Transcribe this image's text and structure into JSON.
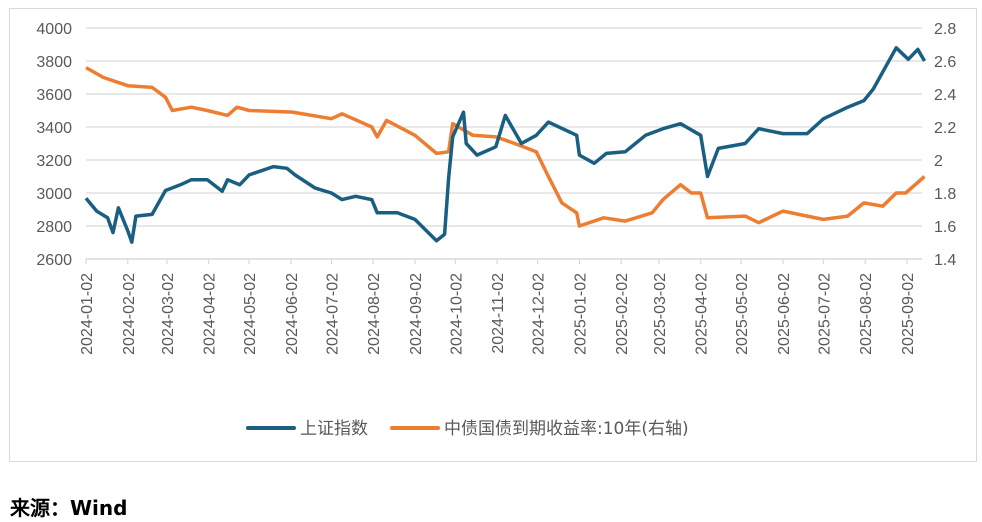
{
  "chart_data": {
    "type": "line",
    "title": "",
    "xlabel": "",
    "ylabel": "",
    "y_left_range": [
      2600,
      4000
    ],
    "y_left_ticks": [
      "2600",
      "2800",
      "3000",
      "3200",
      "3400",
      "3600",
      "3800",
      "4000"
    ],
    "y_right_range": [
      1.4,
      2.8
    ],
    "y_right_ticks": [
      "1.4",
      "1.6",
      "1.8",
      "2",
      "2.2",
      "2.4",
      "2.6",
      "2.8"
    ],
    "x_ticks": [
      "2024-01-02",
      "2024-02-02",
      "2024-03-02",
      "2024-04-02",
      "2024-05-02",
      "2024-06-02",
      "2024-07-02",
      "2024-08-02",
      "2024-09-02",
      "2024-10-02",
      "2024-11-02",
      "2024-12-02",
      "2025-01-02",
      "2025-02-02",
      "2025-03-02",
      "2025-04-02",
      "2025-05-02",
      "2025-06-02",
      "2025-07-02",
      "2025-08-02",
      "2025-09-02"
    ],
    "grid": "horizontal",
    "legend_position": "bottom",
    "series": [
      {
        "name": "上证指数",
        "axis": "left",
        "color": "#1a5f82",
        "points": [
          [
            "2024-01-02",
            2968
          ],
          [
            "2024-01-10",
            2890
          ],
          [
            "2024-01-18",
            2850
          ],
          [
            "2024-01-22",
            2760
          ],
          [
            "2024-01-26",
            2910
          ],
          [
            "2024-02-02",
            2770
          ],
          [
            "2024-02-05",
            2702
          ],
          [
            "2024-02-08",
            2860
          ],
          [
            "2024-02-20",
            2870
          ],
          [
            "2024-03-01",
            3015
          ],
          [
            "2024-03-12",
            3050
          ],
          [
            "2024-03-20",
            3080
          ],
          [
            "2024-04-01",
            3080
          ],
          [
            "2024-04-12",
            3010
          ],
          [
            "2024-04-16",
            3080
          ],
          [
            "2024-04-25",
            3050
          ],
          [
            "2024-05-02",
            3110
          ],
          [
            "2024-05-20",
            3160
          ],
          [
            "2024-05-30",
            3150
          ],
          [
            "2024-06-05",
            3110
          ],
          [
            "2024-06-20",
            3030
          ],
          [
            "2024-07-02",
            3000
          ],
          [
            "2024-07-10",
            2960
          ],
          [
            "2024-07-20",
            2980
          ],
          [
            "2024-08-01",
            2960
          ],
          [
            "2024-08-05",
            2880
          ],
          [
            "2024-08-20",
            2880
          ],
          [
            "2024-09-02",
            2840
          ],
          [
            "2024-09-18",
            2710
          ],
          [
            "2024-09-24",
            2750
          ],
          [
            "2024-09-27",
            3090
          ],
          [
            "2024-09-30",
            3340
          ],
          [
            "2024-10-08",
            3490
          ],
          [
            "2024-10-10",
            3300
          ],
          [
            "2024-10-18",
            3230
          ],
          [
            "2024-11-01",
            3280
          ],
          [
            "2024-11-08",
            3470
          ],
          [
            "2024-11-20",
            3300
          ],
          [
            "2024-12-01",
            3350
          ],
          [
            "2024-12-10",
            3430
          ],
          [
            "2024-12-31",
            3350
          ],
          [
            "2025-01-02",
            3230
          ],
          [
            "2025-01-13",
            3180
          ],
          [
            "2025-01-22",
            3240
          ],
          [
            "2025-02-05",
            3250
          ],
          [
            "2025-02-20",
            3350
          ],
          [
            "2025-03-05",
            3390
          ],
          [
            "2025-03-18",
            3420
          ],
          [
            "2025-04-02",
            3350
          ],
          [
            "2025-04-07",
            3100
          ],
          [
            "2025-04-15",
            3270
          ],
          [
            "2025-05-05",
            3300
          ],
          [
            "2025-05-15",
            3390
          ],
          [
            "2025-06-02",
            3360
          ],
          [
            "2025-06-20",
            3360
          ],
          [
            "2025-07-02",
            3450
          ],
          [
            "2025-07-20",
            3520
          ],
          [
            "2025-08-01",
            3560
          ],
          [
            "2025-08-08",
            3630
          ],
          [
            "2025-08-25",
            3880
          ],
          [
            "2025-09-03",
            3810
          ],
          [
            "2025-09-10",
            3870
          ],
          [
            "2025-09-15",
            3800
          ]
        ]
      },
      {
        "name": "中债国债到期收益率:10年(右轴)",
        "axis": "right",
        "color": "#ed7d31",
        "points": [
          [
            "2024-01-02",
            2.56
          ],
          [
            "2024-01-15",
            2.5
          ],
          [
            "2024-02-02",
            2.45
          ],
          [
            "2024-02-20",
            2.44
          ],
          [
            "2024-03-01",
            2.38
          ],
          [
            "2024-03-06",
            2.3
          ],
          [
            "2024-03-20",
            2.32
          ],
          [
            "2024-04-01",
            2.3
          ],
          [
            "2024-04-16",
            2.27
          ],
          [
            "2024-04-23",
            2.32
          ],
          [
            "2024-05-02",
            2.3
          ],
          [
            "2024-06-03",
            2.29
          ],
          [
            "2024-07-02",
            2.25
          ],
          [
            "2024-07-10",
            2.28
          ],
          [
            "2024-08-01",
            2.2
          ],
          [
            "2024-08-05",
            2.14
          ],
          [
            "2024-08-12",
            2.24
          ],
          [
            "2024-09-02",
            2.15
          ],
          [
            "2024-09-18",
            2.04
          ],
          [
            "2024-09-27",
            2.05
          ],
          [
            "2024-09-30",
            2.22
          ],
          [
            "2024-10-15",
            2.15
          ],
          [
            "2024-11-01",
            2.14
          ],
          [
            "2024-11-15",
            2.1
          ],
          [
            "2024-12-01",
            2.05
          ],
          [
            "2024-12-10",
            1.9
          ],
          [
            "2024-12-20",
            1.74
          ],
          [
            "2024-12-31",
            1.68
          ],
          [
            "2025-01-02",
            1.6
          ],
          [
            "2025-01-20",
            1.65
          ],
          [
            "2025-02-05",
            1.63
          ],
          [
            "2025-02-25",
            1.68
          ],
          [
            "2025-03-05",
            1.76
          ],
          [
            "2025-03-18",
            1.85
          ],
          [
            "2025-03-26",
            1.8
          ],
          [
            "2025-04-02",
            1.8
          ],
          [
            "2025-04-07",
            1.65
          ],
          [
            "2025-05-05",
            1.66
          ],
          [
            "2025-05-15",
            1.62
          ],
          [
            "2025-06-02",
            1.69
          ],
          [
            "2025-06-20",
            1.66
          ],
          [
            "2025-07-02",
            1.64
          ],
          [
            "2025-07-20",
            1.66
          ],
          [
            "2025-08-01",
            1.74
          ],
          [
            "2025-08-15",
            1.72
          ],
          [
            "2025-08-25",
            1.8
          ],
          [
            "2025-09-01",
            1.8
          ],
          [
            "2025-09-15",
            1.9
          ]
        ]
      }
    ]
  },
  "source": "来源：Wind"
}
